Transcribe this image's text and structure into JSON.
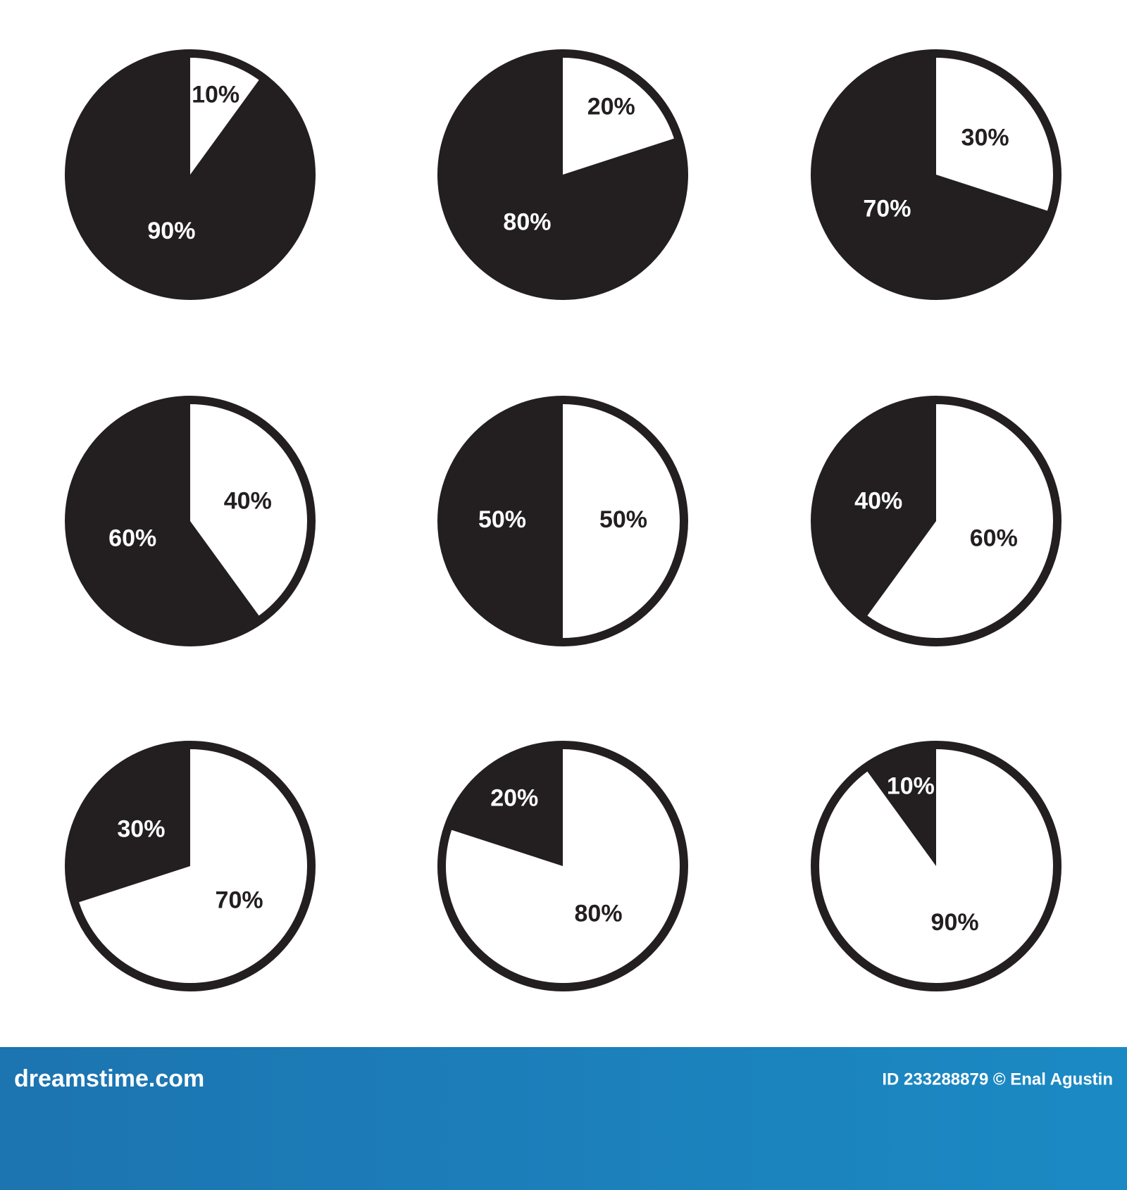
{
  "chart_data": [
    {
      "type": "pie",
      "values": [
        10,
        90
      ],
      "value_labels": [
        "10%",
        "90%"
      ],
      "colors": [
        "#ffffff",
        "#231f20"
      ]
    },
    {
      "type": "pie",
      "values": [
        20,
        80
      ],
      "value_labels": [
        "20%",
        "80%"
      ],
      "colors": [
        "#ffffff",
        "#231f20"
      ]
    },
    {
      "type": "pie",
      "values": [
        30,
        70
      ],
      "value_labels": [
        "30%",
        "70%"
      ],
      "colors": [
        "#ffffff",
        "#231f20"
      ]
    },
    {
      "type": "pie",
      "values": [
        40,
        60
      ],
      "value_labels": [
        "40%",
        "60%"
      ],
      "colors": [
        "#ffffff",
        "#231f20"
      ]
    },
    {
      "type": "pie",
      "values": [
        50,
        50
      ],
      "value_labels": [
        "50%",
        "50%"
      ],
      "colors": [
        "#ffffff",
        "#231f20"
      ]
    },
    {
      "type": "pie",
      "values": [
        60,
        40
      ],
      "value_labels": [
        "60%",
        "40%"
      ],
      "colors": [
        "#ffffff",
        "#231f20"
      ]
    },
    {
      "type": "pie",
      "values": [
        70,
        30
      ],
      "value_labels": [
        "70%",
        "30%"
      ],
      "colors": [
        "#ffffff",
        "#231f20"
      ]
    },
    {
      "type": "pie",
      "values": [
        80,
        20
      ],
      "value_labels": [
        "80%",
        "20%"
      ],
      "colors": [
        "#ffffff",
        "#231f20"
      ]
    },
    {
      "type": "pie",
      "values": [
        90,
        10
      ],
      "value_labels": [
        "90%",
        "10%"
      ],
      "colors": [
        "#ffffff",
        "#231f20"
      ]
    }
  ],
  "footer": {
    "site": "dreamstime.com",
    "credit": "ID 233288879 © Enal Agustin"
  }
}
